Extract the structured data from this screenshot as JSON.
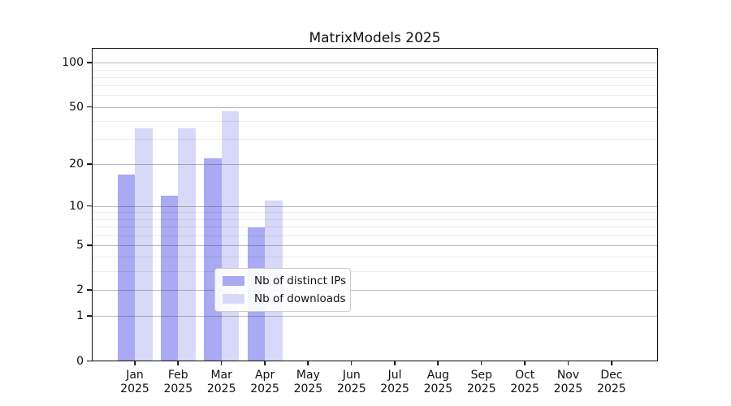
{
  "title": "MatrixModels 2025",
  "chart_data": {
    "type": "bar",
    "title": "MatrixModels 2025",
    "xlabel": "",
    "ylabel": "",
    "yscale": "log1p",
    "y_max": 126,
    "ylim": [
      0,
      126
    ],
    "grid": true,
    "yticks": [
      0,
      1,
      2,
      5,
      10,
      20,
      50,
      100
    ],
    "minor_yticks": [
      3,
      4,
      6,
      7,
      8,
      9,
      30,
      40,
      60,
      70,
      80,
      90
    ],
    "categories": [
      "Jan",
      "Feb",
      "Mar",
      "Apr",
      "May",
      "Jun",
      "Jul",
      "Aug",
      "Sep",
      "Oct",
      "Nov",
      "Dec"
    ],
    "year_label": "2025",
    "series": [
      {
        "name": "Nb of distinct IPs",
        "color": "#a9a9f4",
        "values": [
          17,
          12,
          22,
          7,
          0,
          0,
          0,
          0,
          0,
          0,
          0,
          0
        ]
      },
      {
        "name": "Nb of downloads",
        "color": "#d8d8f8",
        "values": [
          36,
          36,
          47,
          11,
          0,
          0,
          0,
          0,
          0,
          0,
          0,
          0
        ]
      }
    ],
    "legend": {
      "position": "lower center",
      "entries": [
        "Nb of distinct IPs",
        "Nb of downloads"
      ]
    },
    "colors": {
      "background": "#ffffff",
      "spine": "#0c0c0c",
      "major_grid": "#b5b5b5",
      "minor_grid": "#ececec",
      "text": "#111111"
    }
  }
}
